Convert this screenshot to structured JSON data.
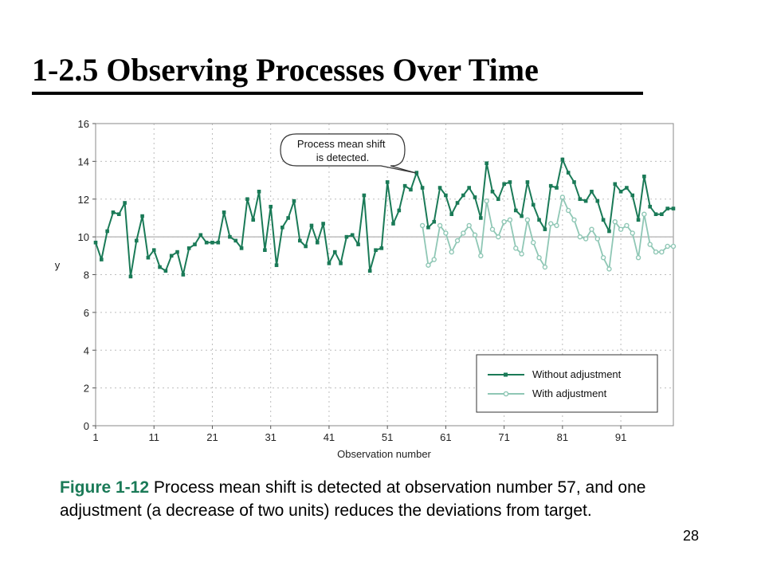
{
  "slide": {
    "title": "1-2.5 Observing Processes Over Time",
    "caption_label": "Figure 1-12",
    "caption_text": "Process mean shift is detected at observation number 57, and one adjustment (a decrease of two units) reduces the deviations from target.",
    "page_number": "28"
  },
  "chart_data": {
    "type": "line",
    "xlabel": "Observation number",
    "ylabel": "y",
    "xlim": [
      1,
      100
    ],
    "ylim": [
      0,
      16
    ],
    "x_ticks": [
      1,
      11,
      21,
      31,
      41,
      51,
      61,
      71,
      81,
      91
    ],
    "y_ticks": [
      0,
      2,
      4,
      6,
      8,
      10,
      12,
      14,
      16
    ],
    "grid": true,
    "target_line": 10,
    "legend_position": "lower-right",
    "annotation": "Process mean shift is detected.",
    "colors": {
      "without": "#1a7a57",
      "with": "#8fc7b5"
    },
    "series": [
      {
        "name": "Without adjustment",
        "x_start": 1,
        "values": [
          9.7,
          8.8,
          10.3,
          11.3,
          11.2,
          11.8,
          7.9,
          9.8,
          11.1,
          8.9,
          9.3,
          8.4,
          8.2,
          9.0,
          9.2,
          8.0,
          9.4,
          9.6,
          10.1,
          9.7,
          9.7,
          9.7,
          11.3,
          10.0,
          9.8,
          9.4,
          12.0,
          10.9,
          12.4,
          9.3,
          11.6,
          8.5,
          10.5,
          11.0,
          11.9,
          9.8,
          9.5,
          10.6,
          9.7,
          10.7,
          8.6,
          9.2,
          8.6,
          10.0,
          10.1,
          9.6,
          12.2,
          8.2,
          9.3,
          9.4,
          12.9,
          10.7,
          11.4,
          12.7,
          12.5,
          13.4,
          12.6,
          10.5,
          10.8,
          12.6,
          12.2,
          11.2,
          11.8,
          12.2,
          12.6,
          12.1,
          11.0,
          13.9,
          12.4,
          12.0,
          12.8,
          12.9,
          11.4,
          11.1,
          12.9,
          11.7,
          10.9,
          10.4,
          12.7,
          12.6,
          14.1,
          13.4,
          12.9,
          12.0,
          11.9,
          12.4,
          11.9,
          10.9,
          10.3,
          12.8,
          12.4,
          12.6,
          12.2,
          10.9,
          13.2,
          11.6,
          11.2,
          11.2,
          11.5,
          11.5
        ]
      },
      {
        "name": "With adjustment",
        "x_start": 57,
        "values": [
          10.6,
          8.5,
          8.8,
          10.6,
          10.2,
          9.2,
          9.8,
          10.2,
          10.6,
          10.1,
          9.0,
          11.9,
          10.4,
          10.0,
          10.8,
          10.9,
          9.4,
          9.1,
          10.9,
          9.7,
          8.9,
          8.4,
          10.7,
          10.6,
          12.1,
          11.4,
          10.9,
          10.0,
          9.9,
          10.4,
          9.9,
          8.9,
          8.3,
          10.8,
          10.4,
          10.6,
          10.2,
          8.9,
          11.2,
          9.6,
          9.2,
          9.2,
          9.5,
          9.5
        ]
      }
    ]
  }
}
